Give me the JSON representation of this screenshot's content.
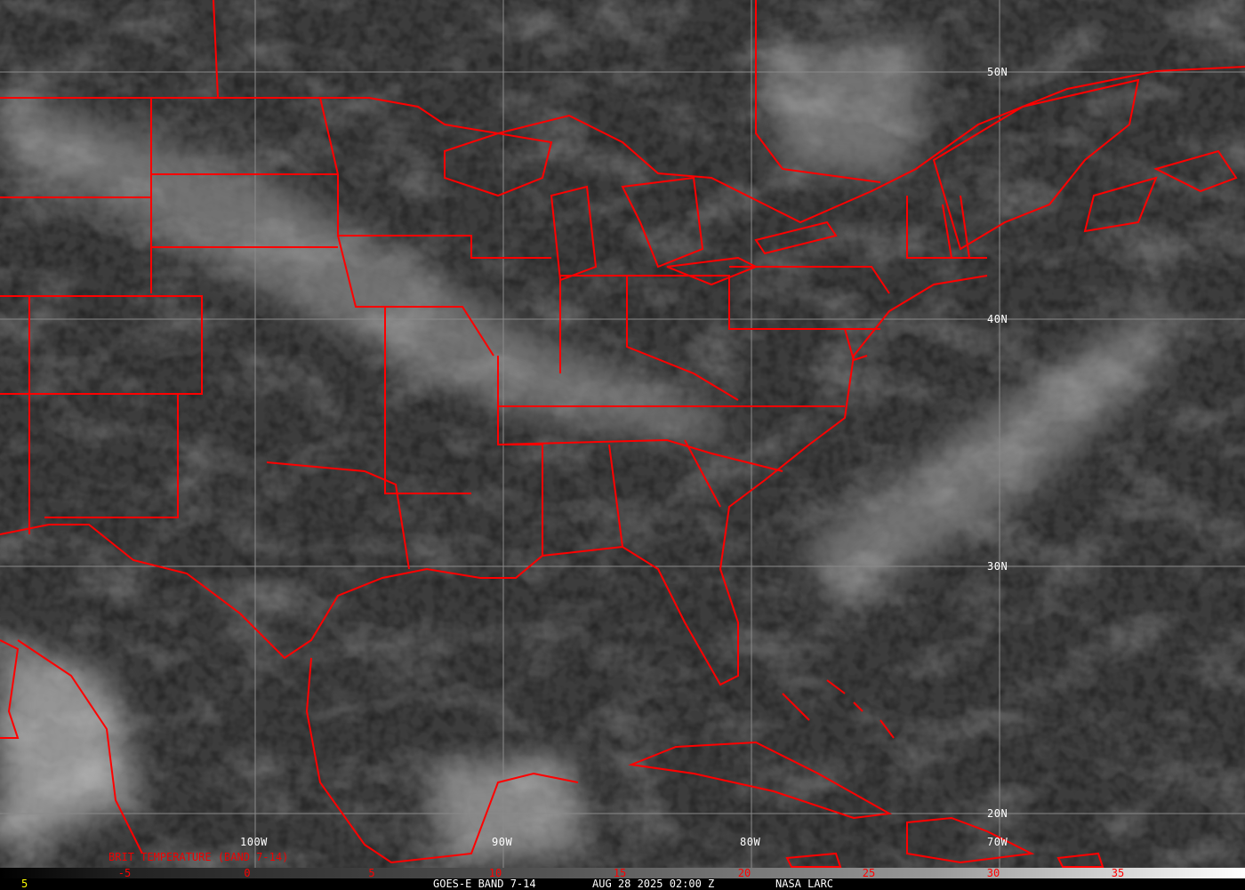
{
  "map": {
    "background_color": "#3c3c3c",
    "border_color": "#ff0000",
    "grid_color": "#8a8a8a",
    "latitude_labels": [
      "50N",
      "40N",
      "30N",
      "20N"
    ],
    "longitude_labels": [
      "100W",
      "90W",
      "80W",
      "70W"
    ]
  },
  "legend": {
    "title": "BRIT TEMPERATURE (BAND 7-14)",
    "ticks": [
      "-5",
      "0",
      "5",
      "10",
      "15",
      "20",
      "25",
      "30",
      "35"
    ]
  },
  "footer": {
    "left_value": "5",
    "satellite": "GOES-E BAND 7-14",
    "datetime": "AUG 28 2025 02:00 Z",
    "source": "NASA LARC"
  }
}
